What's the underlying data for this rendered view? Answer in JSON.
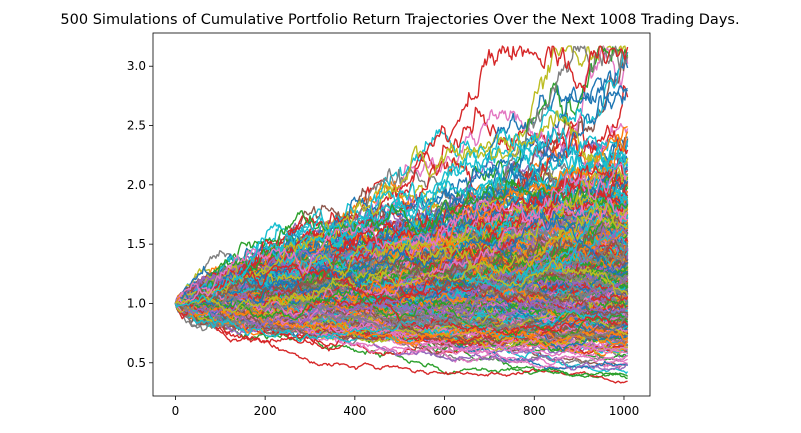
{
  "chart_data": {
    "type": "line",
    "title": "500 Simulations of Cumulative Portfolio Return Trajectories Over the Next 1008 Trading Days.",
    "xlabel": "",
    "ylabel": "",
    "series_count": 500,
    "trading_days": 1008,
    "start_value": 1.0,
    "xlim": [
      -50,
      1058
    ],
    "ylim": [
      0.22,
      3.28
    ],
    "x_ticks": [
      0,
      200,
      400,
      600,
      800,
      1000
    ],
    "x_tick_labels": [
      "0",
      "200",
      "400",
      "600",
      "800",
      "1000"
    ],
    "y_ticks": [
      0.5,
      1.0,
      1.5,
      2.0,
      2.5,
      3.0
    ],
    "y_tick_labels": [
      "0.5",
      "1.0",
      "1.5",
      "2.0",
      "2.5",
      "3.0"
    ],
    "final_value_range": [
      0.33,
      3.17
    ],
    "grid": false,
    "legend": "none",
    "colors": [
      "#1f77b4",
      "#ff7f0e",
      "#2ca02c",
      "#d62728",
      "#9467bd",
      "#8c564b",
      "#e377c2",
      "#7f7f7f",
      "#bcbd22",
      "#17becf"
    ]
  }
}
